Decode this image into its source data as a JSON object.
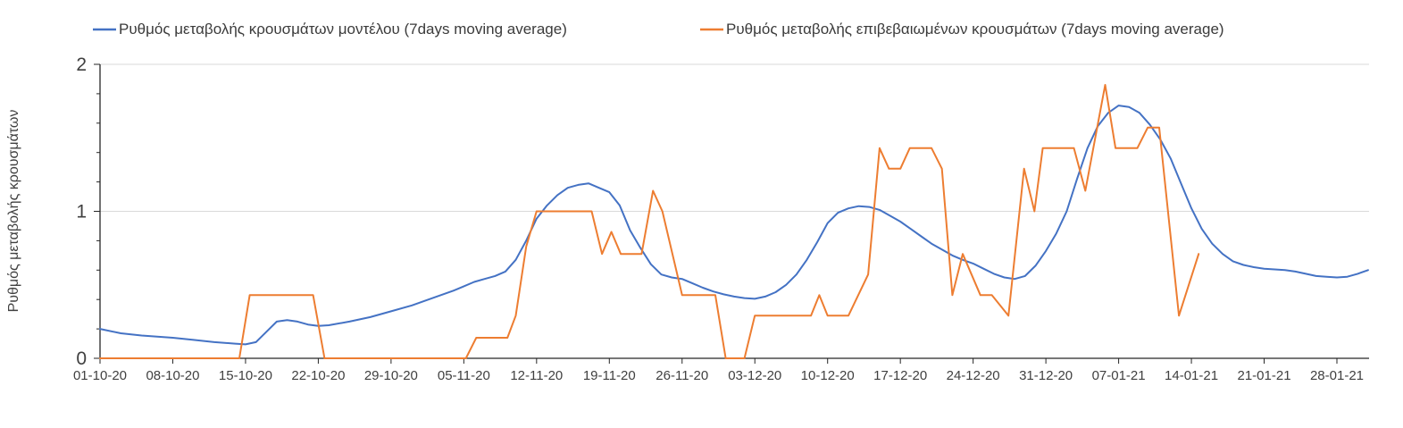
{
  "chart_data": {
    "type": "line",
    "title": "",
    "legend_position": "top",
    "grid": "horizontal",
    "background": "#ffffff",
    "axis_color": "#262626",
    "gridline_color": "#d9d9d9",
    "tick_label_color": "#404040",
    "y_axis": {
      "label": "Ρυθμός μεταβολής κρουσμάτων",
      "ticks": [
        "0",
        "1",
        "2"
      ],
      "range": [
        0,
        2
      ],
      "minor_tick_step": 0.2
    },
    "x_axis": {
      "tick_labels": [
        "01-10-20",
        "08-10-20",
        "15-10-20",
        "22-10-20",
        "29-10-20",
        "05-11-20",
        "12-11-20",
        "19-11-20",
        "26-11-20",
        "03-12-20",
        "10-12-20",
        "17-12-20",
        "24-12-20",
        "31-12-20",
        "07-01-21",
        "14-01-21",
        "21-01-21",
        "28-01-21"
      ],
      "days_between_ticks": 7,
      "total_days_drawn": 122
    },
    "series": [
      {
        "name": "Ρυθμός μεταβολής κρουσμάτων μοντέλου (7days moving average)",
        "color": "#4472c4",
        "points_day_value": [
          [
            0,
            0.2
          ],
          [
            2,
            0.17
          ],
          [
            4,
            0.155
          ],
          [
            7,
            0.14
          ],
          [
            9,
            0.125
          ],
          [
            11,
            0.11
          ],
          [
            13,
            0.1
          ],
          [
            14,
            0.095
          ],
          [
            15,
            0.11
          ],
          [
            16,
            0.18
          ],
          [
            17,
            0.25
          ],
          [
            18,
            0.26
          ],
          [
            19,
            0.25
          ],
          [
            20,
            0.23
          ],
          [
            21,
            0.22
          ],
          [
            22,
            0.225
          ],
          [
            24,
            0.25
          ],
          [
            26,
            0.28
          ],
          [
            28,
            0.32
          ],
          [
            30,
            0.36
          ],
          [
            32,
            0.41
          ],
          [
            34,
            0.46
          ],
          [
            35,
            0.49
          ],
          [
            36,
            0.52
          ],
          [
            37,
            0.54
          ],
          [
            38,
            0.56
          ],
          [
            39,
            0.59
          ],
          [
            40,
            0.67
          ],
          [
            41,
            0.8
          ],
          [
            42,
            0.95
          ],
          [
            43,
            1.04
          ],
          [
            44,
            1.11
          ],
          [
            45,
            1.16
          ],
          [
            46,
            1.18
          ],
          [
            47,
            1.19
          ],
          [
            48,
            1.16
          ],
          [
            49,
            1.13
          ],
          [
            50,
            1.04
          ],
          [
            51,
            0.87
          ],
          [
            52,
            0.75
          ],
          [
            53,
            0.64
          ],
          [
            54,
            0.57
          ],
          [
            55,
            0.55
          ],
          [
            56,
            0.54
          ],
          [
            57,
            0.51
          ],
          [
            58,
            0.48
          ],
          [
            59,
            0.455
          ],
          [
            60,
            0.435
          ],
          [
            61,
            0.42
          ],
          [
            62,
            0.41
          ],
          [
            63,
            0.405
          ],
          [
            64,
            0.42
          ],
          [
            65,
            0.45
          ],
          [
            66,
            0.5
          ],
          [
            67,
            0.57
          ],
          [
            68,
            0.67
          ],
          [
            69,
            0.79
          ],
          [
            70,
            0.92
          ],
          [
            71,
            0.99
          ],
          [
            72,
            1.02
          ],
          [
            73,
            1.035
          ],
          [
            74,
            1.03
          ],
          [
            75,
            1.01
          ],
          [
            76,
            0.97
          ],
          [
            77,
            0.93
          ],
          [
            78,
            0.88
          ],
          [
            79,
            0.83
          ],
          [
            80,
            0.78
          ],
          [
            81,
            0.74
          ],
          [
            82,
            0.7
          ],
          [
            83,
            0.67
          ],
          [
            84,
            0.645
          ],
          [
            85,
            0.61
          ],
          [
            86,
            0.575
          ],
          [
            87,
            0.55
          ],
          [
            88,
            0.54
          ],
          [
            89,
            0.56
          ],
          [
            90,
            0.63
          ],
          [
            91,
            0.73
          ],
          [
            92,
            0.85
          ],
          [
            93,
            1.0
          ],
          [
            94,
            1.22
          ],
          [
            95,
            1.43
          ],
          [
            96,
            1.58
          ],
          [
            97,
            1.67
          ],
          [
            98,
            1.72
          ],
          [
            99,
            1.71
          ],
          [
            100,
            1.67
          ],
          [
            101,
            1.59
          ],
          [
            102,
            1.49
          ],
          [
            103,
            1.36
          ],
          [
            104,
            1.19
          ],
          [
            105,
            1.02
          ],
          [
            106,
            0.88
          ],
          [
            107,
            0.78
          ],
          [
            108,
            0.71
          ],
          [
            109,
            0.66
          ],
          [
            110,
            0.635
          ],
          [
            111,
            0.62
          ],
          [
            112,
            0.61
          ],
          [
            113,
            0.605
          ],
          [
            114,
            0.6
          ],
          [
            115,
            0.59
          ],
          [
            116,
            0.575
          ],
          [
            117,
            0.56
          ],
          [
            118,
            0.555
          ],
          [
            119,
            0.55
          ],
          [
            120,
            0.555
          ],
          [
            121,
            0.575
          ],
          [
            122,
            0.6
          ]
        ]
      },
      {
        "name": "Ρυθμός μεταβολής επιβεβαιωμένων κρουσμάτων (7days moving average)",
        "color": "#ed7d31",
        "points_day_value": [
          [
            0,
            0
          ],
          [
            13.4,
            0
          ],
          [
            14.4,
            0.43
          ],
          [
            20.5,
            0.43
          ],
          [
            21.6,
            0
          ],
          [
            35.2,
            0
          ],
          [
            36.2,
            0.14
          ],
          [
            39.2,
            0.14
          ],
          [
            40,
            0.29
          ],
          [
            41,
            0.76
          ],
          [
            42,
            1.0
          ],
          [
            47.3,
            1.0
          ],
          [
            48.3,
            0.71
          ],
          [
            49.2,
            0.86
          ],
          [
            50.1,
            0.71
          ],
          [
            52.1,
            0.71
          ],
          [
            53.2,
            1.14
          ],
          [
            54.1,
            1.0
          ],
          [
            56,
            0.43
          ],
          [
            59.2,
            0.43
          ],
          [
            60.2,
            0
          ],
          [
            62,
            0
          ],
          [
            63,
            0.29
          ],
          [
            68.4,
            0.29
          ],
          [
            69.2,
            0.43
          ],
          [
            70,
            0.29
          ],
          [
            72,
            0.29
          ],
          [
            73.9,
            0.57
          ],
          [
            75,
            1.43
          ],
          [
            75.9,
            1.29
          ],
          [
            77,
            1.29
          ],
          [
            77.9,
            1.43
          ],
          [
            80,
            1.43
          ],
          [
            81,
            1.29
          ],
          [
            82,
            0.43
          ],
          [
            83,
            0.71
          ],
          [
            84.7,
            0.43
          ],
          [
            85.8,
            0.43
          ],
          [
            87.4,
            0.29
          ],
          [
            88.9,
            1.29
          ],
          [
            89.9,
            1.0
          ],
          [
            90.7,
            1.43
          ],
          [
            93.7,
            1.43
          ],
          [
            94.8,
            1.14
          ],
          [
            96.7,
            1.86
          ],
          [
            97.7,
            1.43
          ],
          [
            99.8,
            1.43
          ],
          [
            100.8,
            1.57
          ],
          [
            101.9,
            1.57
          ],
          [
            103.8,
            0.29
          ],
          [
            105.7,
            0.71
          ]
        ]
      }
    ]
  }
}
